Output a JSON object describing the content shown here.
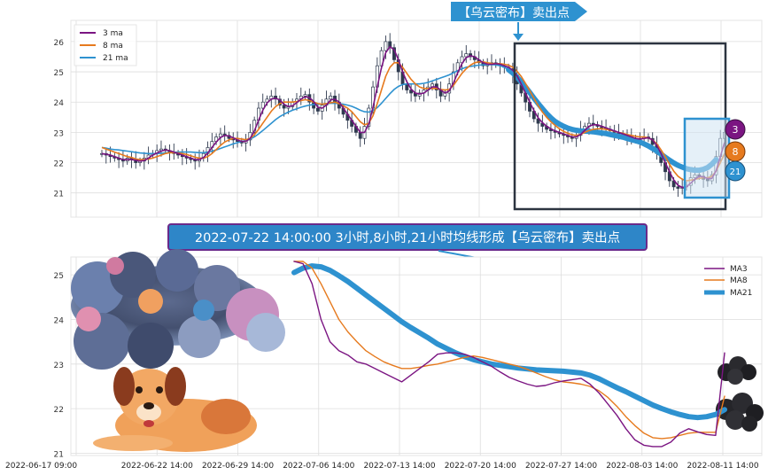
{
  "banner_top": "【乌云密布】卖出点",
  "caption": "2022-07-22 14:00:00 3小时,8小时,21小时均线形成【乌云密布】卖出点",
  "colors": {
    "ma3": "#7b1582",
    "ma8": "#e67a1e",
    "ma21": "#2e92d0",
    "candle": "#2f3a4f",
    "grid": "#dddddd",
    "banner": "#2e92d0",
    "caption_bg": "#2e86c8",
    "caption_border": "#6a2a8a",
    "box": "#2c3440",
    "hl_box": "#2e92d0"
  },
  "markers": [
    {
      "label": "3",
      "color": "#7b1582"
    },
    {
      "label": "8",
      "color": "#e67a1e"
    },
    {
      "label": "21",
      "color": "#2e92d0"
    }
  ],
  "chart_data": [
    {
      "type": "candlestick+line",
      "title": "",
      "ylim": [
        20.2,
        26.7
      ],
      "yticks": [
        21,
        22,
        23,
        24,
        25,
        26
      ],
      "xlim": [
        0,
        240
      ],
      "legend": {
        "placement": "top-left",
        "entries": [
          "3 ma",
          "8 ma",
          "21 ma"
        ]
      },
      "grid": true,
      "close": [
        22.3,
        22.25,
        22.2,
        22.15,
        22.1,
        22.05,
        22.15,
        22.1,
        22.0,
        22.05,
        22.15,
        22.25,
        22.3,
        22.4,
        22.45,
        22.4,
        22.35,
        22.3,
        22.25,
        22.2,
        22.15,
        22.1,
        22.05,
        22.15,
        22.3,
        22.5,
        22.7,
        22.85,
        22.95,
        22.9,
        22.8,
        22.75,
        22.7,
        22.65,
        22.75,
        23.0,
        23.4,
        23.8,
        24.0,
        24.1,
        24.2,
        24.1,
        23.9,
        23.8,
        23.85,
        24.0,
        24.1,
        24.2,
        24.25,
        24.0,
        23.8,
        23.7,
        23.9,
        24.1,
        24.2,
        24.0,
        23.8,
        23.6,
        23.4,
        23.2,
        23.0,
        22.8,
        23.2,
        23.8,
        24.5,
        25.2,
        25.7,
        26.0,
        25.8,
        25.4,
        25.0,
        24.6,
        24.4,
        24.3,
        24.2,
        24.3,
        24.4,
        24.5,
        24.6,
        24.4,
        24.2,
        24.3,
        24.6,
        25.0,
        25.3,
        25.5,
        25.6,
        25.5,
        25.4,
        25.3,
        25.2,
        25.25,
        25.3,
        25.25,
        25.2,
        25.15,
        25.1,
        24.9,
        24.6,
        24.3,
        24.0,
        23.7,
        23.45,
        23.3,
        23.2,
        23.1,
        23.05,
        23.0,
        22.95,
        22.9,
        22.85,
        22.8,
        22.9,
        23.1,
        23.2,
        23.3,
        23.25,
        23.2,
        23.15,
        23.1,
        23.05,
        23.0,
        22.95,
        22.9,
        22.85,
        22.8,
        22.75,
        22.8,
        22.85,
        22.8,
        22.6,
        22.3,
        22.0,
        21.7,
        21.4,
        21.2,
        21.15,
        21.2,
        21.25,
        21.5,
        21.6,
        21.55,
        21.45,
        21.4,
        21.6,
        22.2,
        22.8,
        23.0
      ],
      "ma3": [
        22.3,
        22.28,
        22.25,
        22.2,
        22.15,
        22.1,
        22.1,
        22.1,
        22.08,
        22.05,
        22.07,
        22.15,
        22.25,
        22.32,
        22.38,
        22.42,
        22.4,
        22.35,
        22.3,
        22.25,
        22.2,
        22.15,
        22.1,
        22.1,
        22.17,
        22.32,
        22.5,
        22.68,
        22.83,
        22.9,
        22.88,
        22.82,
        22.75,
        22.7,
        22.7,
        22.8,
        23.05,
        23.4,
        23.73,
        23.97,
        24.1,
        24.13,
        24.07,
        23.93,
        23.85,
        23.88,
        23.98,
        24.1,
        24.18,
        24.15,
        24.02,
        23.83,
        23.8,
        23.9,
        24.07,
        24.1,
        24.0,
        23.8,
        23.6,
        23.4,
        23.2,
        23.0,
        23.0,
        23.27,
        23.83,
        24.5,
        25.13,
        25.63,
        25.83,
        25.73,
        25.4,
        25.0,
        24.67,
        24.43,
        24.3,
        24.27,
        24.3,
        24.4,
        24.5,
        24.5,
        24.4,
        24.3,
        24.37,
        24.63,
        24.97,
        25.27,
        25.47,
        25.53,
        25.5,
        25.4,
        25.3,
        25.25,
        25.25,
        25.27,
        25.25,
        25.2,
        25.15,
        25.05,
        24.87,
        24.6,
        24.3,
        24.0,
        23.72,
        23.48,
        23.32,
        23.2,
        23.12,
        23.05,
        23.0,
        22.95,
        22.9,
        22.85,
        22.85,
        22.93,
        23.07,
        23.2,
        23.25,
        23.25,
        23.2,
        23.15,
        23.1,
        23.05,
        23.0,
        22.95,
        22.9,
        22.85,
        22.8,
        22.78,
        22.8,
        22.82,
        22.75,
        22.57,
        22.3,
        22.0,
        21.7,
        21.43,
        21.25,
        21.18,
        21.2,
        21.32,
        21.45,
        21.55,
        21.53,
        21.47,
        21.48,
        21.73,
        22.2,
        22.67
      ],
      "ma8": [
        22.5,
        22.45,
        22.4,
        22.35,
        22.3,
        22.25,
        22.2,
        22.17,
        22.12,
        22.1,
        22.1,
        22.12,
        22.15,
        22.2,
        22.25,
        22.3,
        22.33,
        22.33,
        22.32,
        22.3,
        22.27,
        22.23,
        22.18,
        22.15,
        22.15,
        22.2,
        22.3,
        22.43,
        22.57,
        22.68,
        22.75,
        22.8,
        22.8,
        22.78,
        22.76,
        22.8,
        22.92,
        23.1,
        23.3,
        23.5,
        23.7,
        23.85,
        23.95,
        24.0,
        24.0,
        24.0,
        24.02,
        24.05,
        24.08,
        24.05,
        24.0,
        23.95,
        23.93,
        23.95,
        23.98,
        24.0,
        23.95,
        23.88,
        23.8,
        23.68,
        23.52,
        23.35,
        23.25,
        23.3,
        23.55,
        23.95,
        24.4,
        24.85,
        25.15,
        25.3,
        25.3,
        25.15,
        24.95,
        24.75,
        24.6,
        24.5,
        24.45,
        24.45,
        24.45,
        24.45,
        24.42,
        24.4,
        24.42,
        24.55,
        24.75,
        24.95,
        25.1,
        25.22,
        25.3,
        25.33,
        25.33,
        25.3,
        25.28,
        25.27,
        25.27,
        25.25,
        25.22,
        25.15,
        25.02,
        24.85,
        24.62,
        24.38,
        24.12,
        23.88,
        23.67,
        23.5,
        23.35,
        23.23,
        23.12,
        23.03,
        22.97,
        22.92,
        22.9,
        22.93,
        23.0,
        23.06,
        23.1,
        23.12,
        23.12,
        23.1,
        23.07,
        23.04,
        23.0,
        22.97,
        22.93,
        22.9,
        22.87,
        22.85,
        22.85,
        22.82,
        22.75,
        22.62,
        22.42,
        22.2,
        21.95,
        21.72,
        21.55,
        21.45,
        21.4,
        21.42,
        21.45,
        21.48,
        21.5,
        21.5,
        21.55,
        21.72,
        22.0,
        22.3
      ],
      "ma21": [
        22.5,
        22.48,
        22.45,
        22.43,
        22.42,
        22.4,
        22.38,
        22.36,
        22.34,
        22.32,
        22.31,
        22.3,
        22.3,
        22.3,
        22.31,
        22.32,
        22.33,
        22.34,
        22.35,
        22.35,
        22.35,
        22.35,
        22.34,
        22.33,
        22.33,
        22.35,
        22.38,
        22.42,
        22.47,
        22.52,
        22.57,
        22.62,
        22.66,
        22.7,
        22.73,
        22.78,
        22.85,
        22.95,
        23.06,
        23.18,
        23.3,
        23.42,
        23.52,
        23.6,
        23.67,
        23.73,
        23.78,
        23.83,
        23.87,
        23.9,
        23.92,
        23.93,
        23.94,
        23.95,
        23.96,
        23.96,
        23.95,
        23.93,
        23.9,
        23.86,
        23.8,
        23.73,
        23.68,
        23.67,
        23.72,
        23.82,
        23.96,
        24.12,
        24.28,
        24.42,
        24.52,
        24.58,
        24.6,
        24.6,
        24.6,
        24.6,
        24.62,
        24.65,
        24.7,
        24.75,
        24.8,
        24.85,
        24.9,
        24.97,
        25.04,
        25.1,
        25.15,
        25.18,
        25.2,
        25.22,
        25.23,
        25.24,
        25.24,
        25.23,
        25.2,
        25.15,
        25.07,
        24.96,
        24.82,
        24.67,
        24.5,
        24.32,
        24.13,
        23.95,
        23.78,
        23.62,
        23.48,
        23.36,
        23.27,
        23.2,
        23.14,
        23.1,
        23.07,
        23.05,
        23.04,
        23.03,
        23.02,
        23.0,
        22.98,
        22.96,
        22.93,
        22.9,
        22.87,
        22.84,
        22.8,
        22.76,
        22.72,
        22.68,
        22.62,
        22.55,
        22.47,
        22.38,
        22.28,
        22.18,
        22.08,
        21.99,
        21.91,
        21.85,
        21.8,
        21.77,
        21.75,
        21.75,
        21.78,
        21.84,
        21.95,
        22.1
      ]
    },
    {
      "type": "line",
      "title": "",
      "ylim": [
        20.95,
        25.4
      ],
      "yticks": [
        21,
        22,
        23,
        24,
        25
      ],
      "xticklabels": [
        "2022-06-17 09:00",
        "2022-06-22 14:00",
        "2022-06-29 14:00",
        "2022-07-06 14:00",
        "2022-07-13 14:00",
        "2022-07-20 14:00",
        "2022-07-27 14:00",
        "2022-08-03 14:00",
        "2022-08-11 14:00"
      ],
      "legend": {
        "placement": "top-right",
        "entries": [
          "MA3",
          "MA8",
          "MA21"
        ]
      },
      "grid": true,
      "x": [
        0,
        1,
        2,
        3,
        4,
        5,
        6,
        7,
        8,
        9,
        10,
        11,
        12,
        13,
        14,
        15,
        16,
        17,
        18,
        19,
        20,
        21,
        22,
        23,
        24,
        25,
        26,
        27,
        28,
        29,
        30,
        31,
        32,
        33,
        34,
        35,
        36,
        37,
        38,
        39,
        40,
        41,
        42,
        43,
        44,
        45,
        46,
        47,
        48
      ],
      "series": [
        {
          "name": "MA3",
          "values": [
            25.3,
            25.25,
            24.8,
            24.0,
            23.5,
            23.3,
            23.2,
            23.05,
            23.0,
            22.9,
            22.8,
            22.7,
            22.6,
            22.75,
            22.9,
            23.05,
            23.22,
            23.25,
            23.25,
            23.22,
            23.15,
            23.05,
            22.95,
            22.82,
            22.7,
            22.62,
            22.55,
            22.5,
            22.52,
            22.58,
            22.62,
            22.65,
            22.68,
            22.55,
            22.35,
            22.1,
            21.85,
            21.55,
            21.3,
            21.18,
            21.15,
            21.15,
            21.25,
            21.45,
            21.55,
            21.48,
            21.42,
            21.4,
            23.25
          ]
        },
        {
          "name": "MA8",
          "values": [
            25.3,
            25.3,
            25.15,
            24.8,
            24.4,
            24.0,
            23.72,
            23.5,
            23.3,
            23.17,
            23.05,
            22.97,
            22.9,
            22.9,
            22.93,
            22.97,
            23.0,
            23.05,
            23.1,
            23.15,
            23.18,
            23.15,
            23.1,
            23.05,
            23.0,
            22.95,
            22.88,
            22.8,
            22.72,
            22.65,
            22.6,
            22.58,
            22.55,
            22.5,
            22.4,
            22.25,
            22.05,
            21.82,
            21.62,
            21.45,
            21.35,
            21.33,
            21.35,
            21.4,
            21.45,
            21.47,
            21.47,
            21.47,
            22.28
          ]
        },
        {
          "name": "MA21",
          "values": [
            25.05,
            25.15,
            25.2,
            25.18,
            25.1,
            24.98,
            24.85,
            24.7,
            24.55,
            24.4,
            24.25,
            24.1,
            23.95,
            23.82,
            23.7,
            23.58,
            23.45,
            23.35,
            23.25,
            23.17,
            23.1,
            23.05,
            23.0,
            22.97,
            22.94,
            22.91,
            22.89,
            22.87,
            22.86,
            22.85,
            22.84,
            22.82,
            22.8,
            22.75,
            22.67,
            22.57,
            22.47,
            22.38,
            22.28,
            22.18,
            22.08,
            22.0,
            21.93,
            21.87,
            21.82,
            21.8,
            21.82,
            21.87,
            21.98
          ]
        }
      ]
    }
  ]
}
